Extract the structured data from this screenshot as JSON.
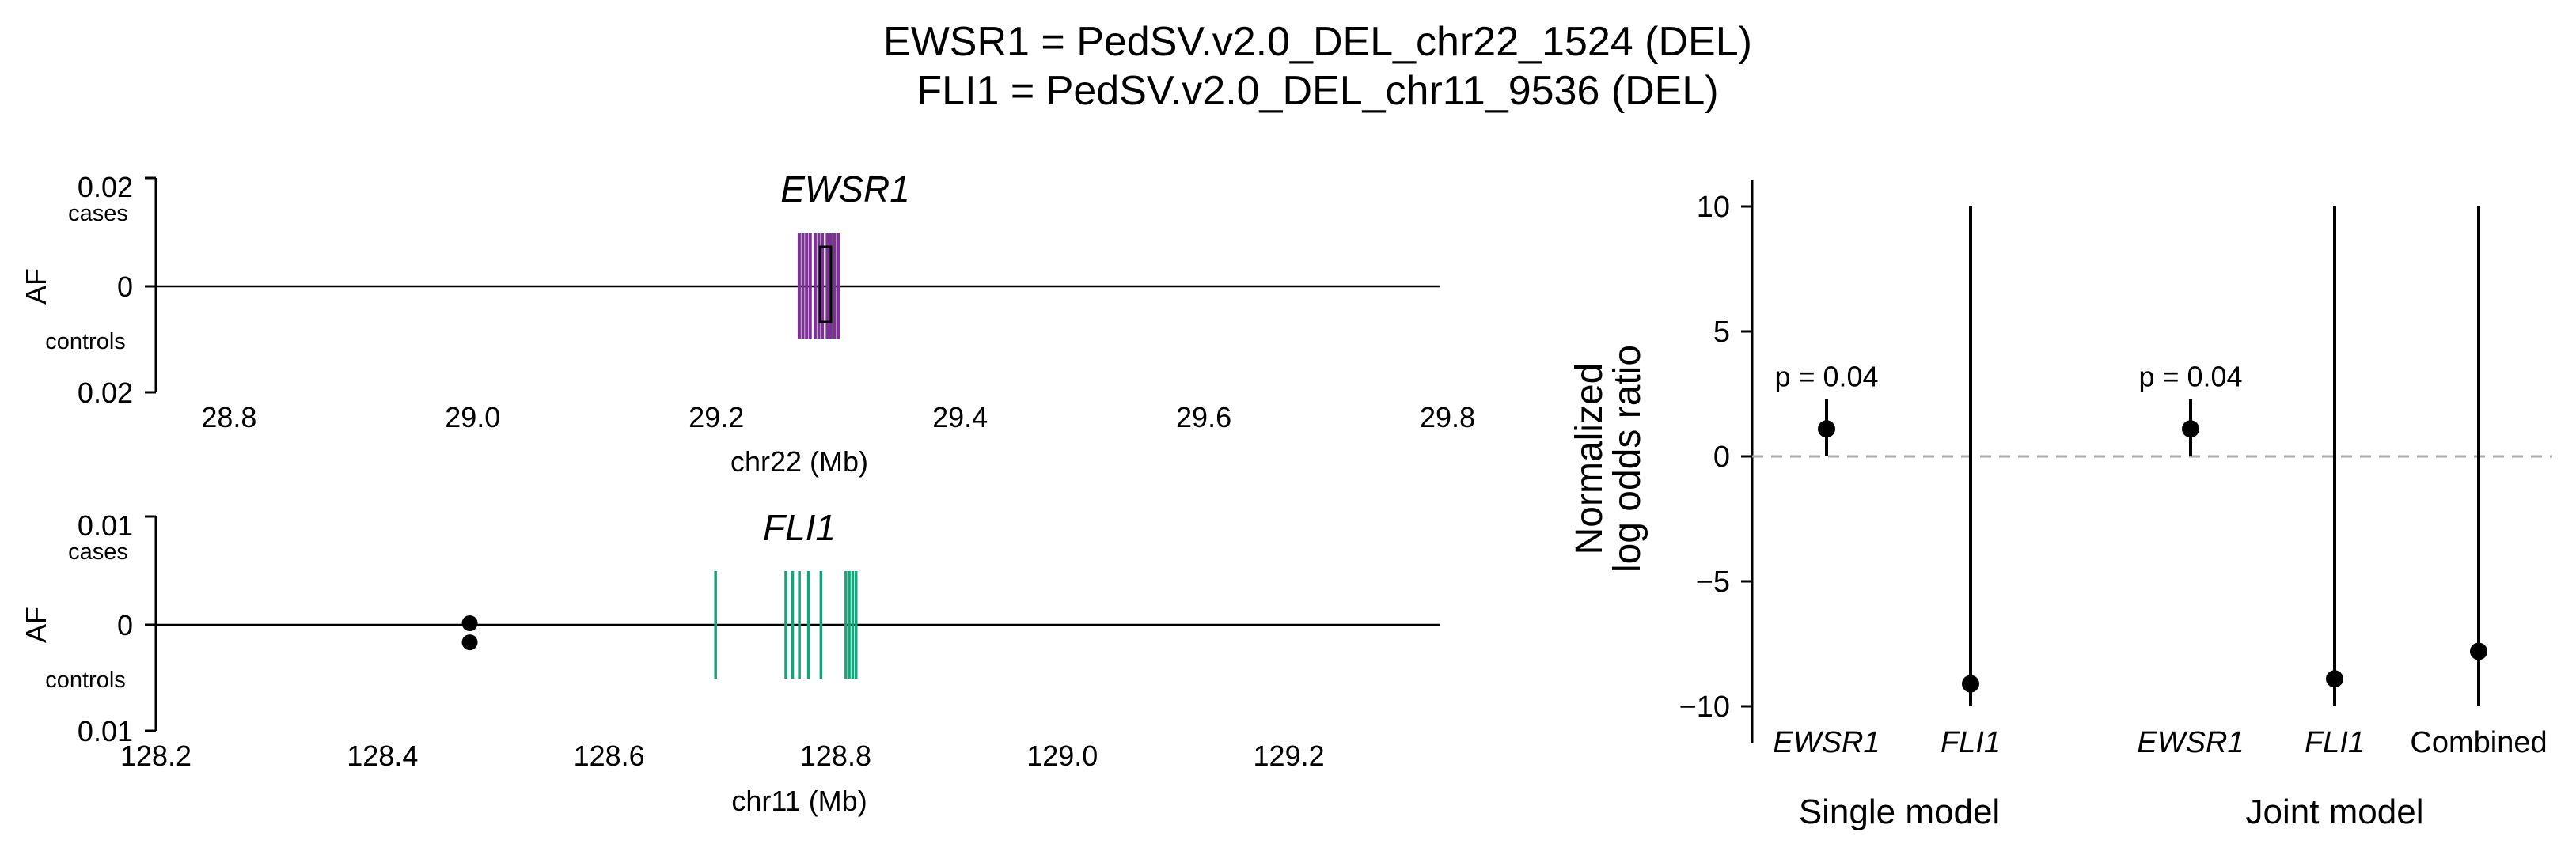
{
  "title": {
    "line1": "EWSR1 = PedSV.v2.0_DEL_chr22_1524 (DEL)",
    "line2": "FLI1 = PedSV.v2.0_DEL_chr11_9536 (DEL)"
  },
  "colors": {
    "ewsr1": "#7b3294",
    "fli1": "#1aa37a",
    "ref_line": "#aaaaaa",
    "point": "#000000"
  },
  "chart_data": [
    {
      "type": "scatter",
      "panel": "ewsr1-locus",
      "title": "EWSR1",
      "xlabel": "chr22 (Mb)",
      "ylabel": "AF",
      "y_top_label": "cases",
      "y_bottom_label": "controls",
      "y_top_tick": "0.02",
      "y_mid_tick": "0",
      "y_bottom_tick": "0.02",
      "xlim": [
        28.74,
        29.8
      ],
      "xticks": [
        "28.8",
        "29.0",
        "29.2",
        "29.4",
        "29.6",
        "29.8"
      ],
      "exon_positions": [
        29.268,
        29.271,
        29.274,
        29.277,
        29.281,
        29.284,
        29.287,
        29.291,
        29.294,
        29.297,
        29.3
      ],
      "sv_interval": [
        29.285,
        29.294
      ],
      "sv_af": {
        "cases": 0.0021,
        "controls": 0.0021
      }
    },
    {
      "type": "scatter",
      "panel": "fli1-locus",
      "title": "FLI1",
      "xlabel": "chr11 (Mb)",
      "ylabel": "AF",
      "y_top_label": "cases",
      "y_bottom_label": "controls",
      "y_top_tick": "0.01",
      "y_mid_tick": "0",
      "y_bottom_tick": "0.01",
      "xlim": [
        128.2,
        129.34
      ],
      "xticks": [
        "128.2",
        "128.4",
        "128.6",
        "128.8",
        "129.0",
        "129.2"
      ],
      "exon_positions": [
        128.694,
        128.756,
        128.762,
        128.768,
        128.776,
        128.787,
        128.809,
        128.812,
        128.815,
        128.818
      ],
      "sv_points": [
        {
          "x": 128.477,
          "group": "cases",
          "af": 0.0
        },
        {
          "x": 128.477,
          "group": "controls",
          "af": 0.0011
        }
      ]
    },
    {
      "type": "scatter",
      "panel": "odds-ratios",
      "ylabel_line1": "Normalized",
      "ylabel_line2": "log odds ratio",
      "ylim": [
        -11,
        11
      ],
      "yticks": [
        "10",
        "5",
        "0",
        "−5",
        "−10"
      ],
      "reference_line": 0,
      "groups": [
        {
          "name": "Single model",
          "categories": [
            "EWSR1",
            "FLI1"
          ]
        },
        {
          "name": "Joint model",
          "categories": [
            "EWSR1",
            "FLI1",
            "Combined"
          ]
        }
      ],
      "points": [
        {
          "category": "EWSR1",
          "group": "Single model",
          "estimate": 1.1,
          "ci": [
            0.0,
            2.3
          ],
          "annotation": "p = 0.04"
        },
        {
          "category": "FLI1",
          "group": "Single model",
          "estimate": -9.1,
          "ci": [
            -10.0,
            10.0
          ]
        },
        {
          "category": "EWSR1",
          "group": "Joint model",
          "estimate": 1.1,
          "ci": [
            0.0,
            2.3
          ],
          "annotation": "p = 0.04"
        },
        {
          "category": "FLI1",
          "group": "Joint model",
          "estimate": -8.9,
          "ci": [
            -10.0,
            10.0
          ]
        },
        {
          "category": "Combined",
          "group": "Joint model",
          "estimate": -7.8,
          "ci": [
            -10.0,
            10.0
          ]
        }
      ]
    }
  ]
}
